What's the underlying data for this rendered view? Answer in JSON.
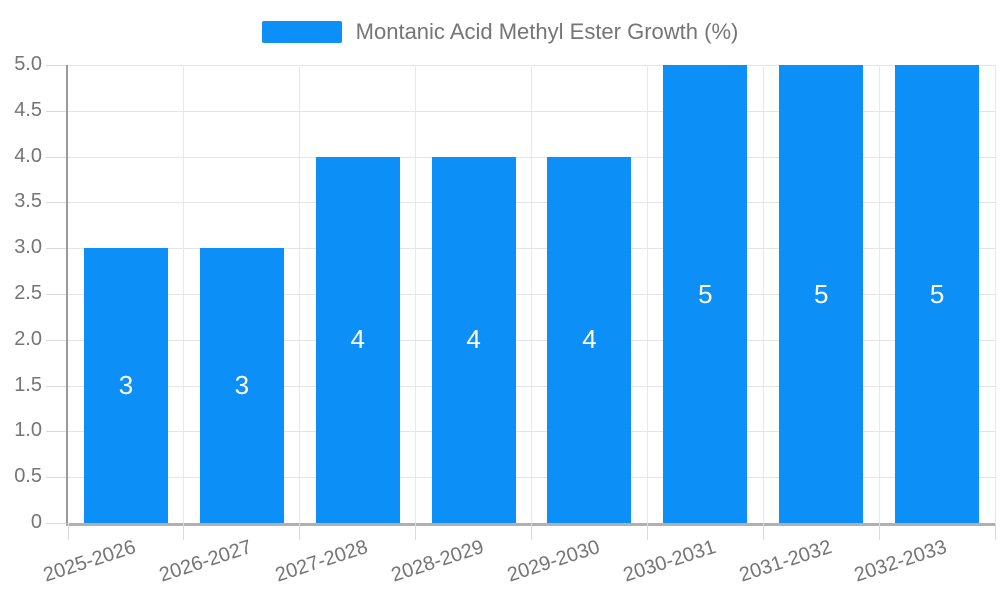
{
  "chart_data": {
    "type": "bar",
    "title": "Montanic Acid Methyl Ester Growth (%)",
    "legend_entries": [
      "Montanic Acid Methyl Ester Growth (%)"
    ],
    "legend_position": "top-center",
    "categories": [
      "2025-2026",
      "2026-2027",
      "2027-2028",
      "2028-2029",
      "2029-2030",
      "2030-2031",
      "2031-2032",
      "2032-2033"
    ],
    "series": [
      {
        "name": "Montanic Acid Methyl Ester Growth (%)",
        "values": [
          3,
          3,
          4,
          4,
          4,
          5,
          5,
          5
        ]
      }
    ],
    "bar_value_labels": [
      "3",
      "3",
      "4",
      "4",
      "4",
      "5",
      "5",
      "5"
    ],
    "xlabel": "",
    "ylabel": "",
    "ylim": [
      0,
      5
    ],
    "y_tick_labels": [
      "0",
      "0.5",
      "1.0",
      "1.5",
      "2.0",
      "2.5",
      "3.0",
      "3.5",
      "4.0",
      "4.5",
      "5.0"
    ],
    "grid": true,
    "colors": {
      "bar": "#0d8ff8",
      "bar_label_text": "#ffffff",
      "axis_text": "#757575",
      "grid_line": "#e5e5e5",
      "y_axis_line": "#9a9a9a",
      "x_axis_line": "#b0b0b0",
      "background": "#ffffff"
    }
  }
}
